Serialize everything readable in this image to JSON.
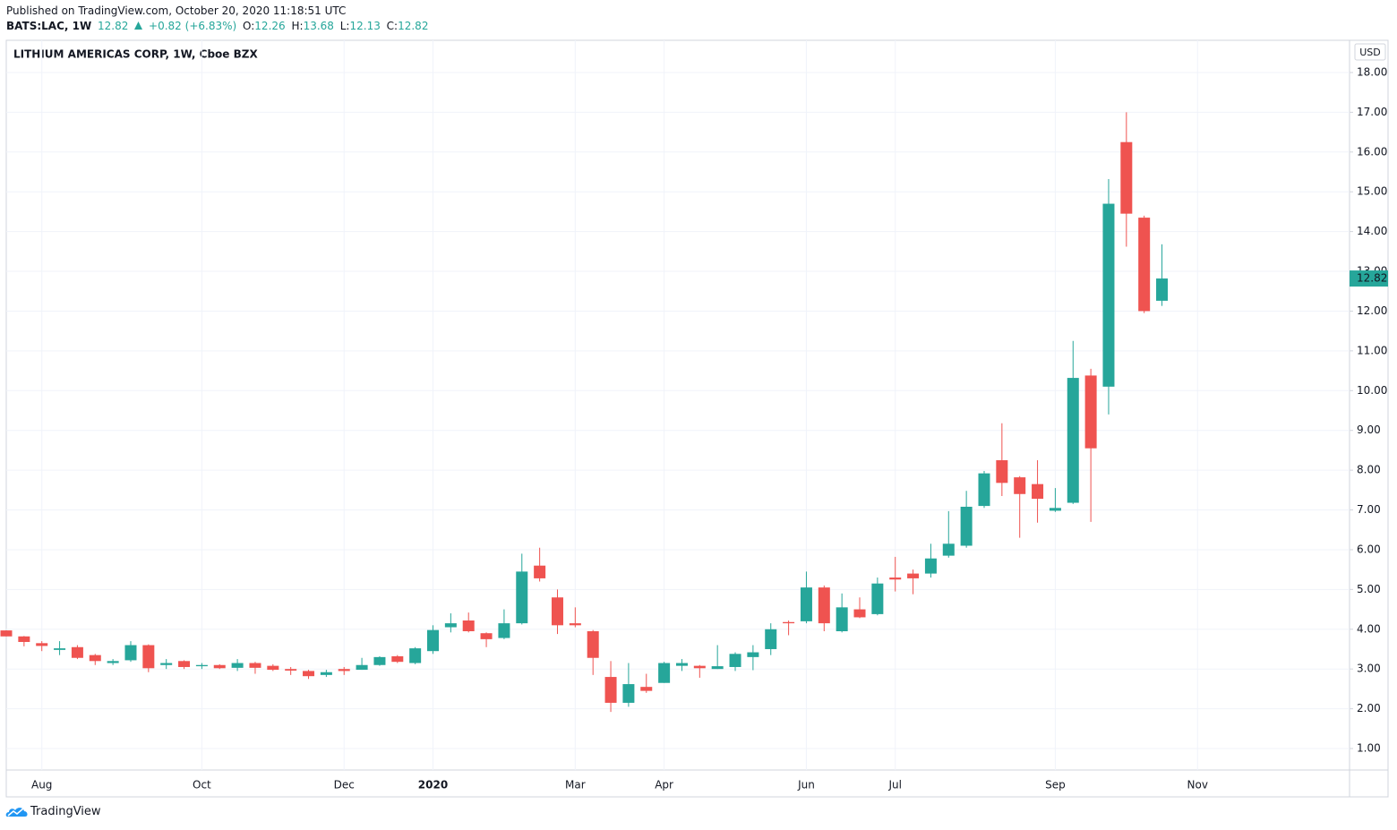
{
  "header": {
    "published": "Published on TradingView.com, October 20, 2020 11:18:51 UTC",
    "symbol": "BATS:LAC, 1W",
    "change": "+0.82 (+6.83%)",
    "o": "O:",
    "h": "H:",
    "l": "L:",
    "c": "C:"
  },
  "footer": {
    "brand": "TradingView"
  },
  "chart_data": {
    "type": "candlestick",
    "title": "LITHIUM AMERICAS CORP, 1W, Cboe BZX",
    "currency": "USD",
    "categories": [
      null,
      null,
      "Aug",
      null,
      null,
      null,
      null,
      null,
      null,
      null,
      null,
      "Oct",
      null,
      null,
      null,
      null,
      null,
      null,
      null,
      "Dec",
      null,
      null,
      null,
      null,
      "2020",
      null,
      null,
      null,
      null,
      null,
      null,
      null,
      "Mar",
      null,
      null,
      null,
      null,
      "Apr",
      null,
      null,
      null,
      null,
      null,
      null,
      null,
      "Jun",
      null,
      null,
      null,
      null,
      "Jul",
      null,
      null,
      null,
      null,
      null,
      null,
      null,
      null,
      "Sep",
      null,
      null,
      null,
      null,
      null,
      null,
      null,
      "Nov",
      null,
      null,
      null,
      null,
      null,
      null,
      null,
      null
    ],
    "open": [
      3.97,
      3.82,
      3.65,
      3.48,
      3.55,
      3.35,
      3.15,
      3.22,
      3.6,
      3.1,
      3.2,
      3.07,
      3.1,
      3.03,
      3.15,
      3.08,
      3.0,
      2.95,
      2.85,
      3.0,
      2.98,
      3.1,
      3.32,
      3.15,
      3.45,
      4.05,
      4.22,
      3.9,
      3.78,
      4.15,
      5.6,
      4.8,
      4.15,
      3.95,
      2.8,
      2.15,
      2.55,
      2.65,
      3.08,
      3.08,
      3.0,
      3.05,
      3.3,
      3.5,
      4.18,
      4.2,
      5.05,
      3.95,
      4.5,
      4.38,
      5.3,
      5.4,
      5.4,
      5.85,
      6.1,
      7.1,
      8.25,
      7.82,
      7.65,
      6.98,
      7.18,
      10.38,
      10.1,
      16.25,
      14.35,
      12.26,
      null,
      null,
      null,
      null,
      null,
      null,
      null,
      null,
      null,
      null
    ],
    "high": [
      3.97,
      3.83,
      3.7,
      3.7,
      3.6,
      3.38,
      3.25,
      3.7,
      3.62,
      3.25,
      3.22,
      3.15,
      3.12,
      3.25,
      3.18,
      3.12,
      3.05,
      2.98,
      2.98,
      3.05,
      3.28,
      3.32,
      3.35,
      3.55,
      4.1,
      4.4,
      4.42,
      3.92,
      4.5,
      5.9,
      6.05,
      5.0,
      4.55,
      3.98,
      3.2,
      3.15,
      2.88,
      3.18,
      3.25,
      3.1,
      3.6,
      3.42,
      3.6,
      4.15,
      4.22,
      5.45,
      5.1,
      4.9,
      4.8,
      5.3,
      5.82,
      5.5,
      6.15,
      6.97,
      7.48,
      7.98,
      9.18,
      7.85,
      8.25,
      7.55,
      11.25,
      10.55,
      15.32,
      17.0,
      14.4,
      13.68,
      null,
      null,
      null,
      null,
      null,
      null,
      null,
      null,
      null,
      null
    ],
    "low": [
      3.82,
      3.57,
      3.45,
      3.35,
      3.25,
      3.1,
      3.1,
      3.18,
      2.92,
      3.0,
      3.0,
      3.0,
      3.0,
      2.95,
      2.88,
      2.95,
      2.85,
      2.75,
      2.8,
      2.85,
      2.98,
      3.08,
      3.15,
      3.12,
      3.38,
      3.92,
      3.92,
      3.55,
      3.75,
      4.12,
      5.2,
      3.88,
      4.05,
      2.85,
      1.92,
      2.05,
      2.4,
      2.65,
      2.95,
      2.78,
      3.0,
      2.95,
      2.97,
      3.35,
      3.85,
      4.15,
      3.95,
      3.92,
      4.28,
      4.35,
      4.95,
      4.88,
      5.3,
      5.8,
      6.05,
      7.05,
      7.35,
      6.3,
      6.68,
      6.95,
      7.15,
      6.7,
      9.4,
      13.62,
      11.95,
      12.13,
      null,
      null,
      null,
      null,
      null,
      null,
      null,
      null,
      null,
      null
    ],
    "close": [
      3.82,
      3.68,
      3.58,
      3.52,
      3.28,
      3.2,
      3.2,
      3.6,
      3.02,
      3.15,
      3.05,
      3.1,
      3.02,
      3.15,
      3.03,
      2.98,
      2.96,
      2.82,
      2.92,
      2.95,
      3.1,
      3.3,
      3.18,
      3.52,
      3.98,
      4.15,
      3.95,
      3.75,
      4.15,
      5.45,
      5.28,
      4.1,
      4.1,
      3.28,
      2.15,
      2.62,
      2.45,
      3.15,
      3.15,
      3.02,
      3.07,
      3.38,
      3.42,
      4.0,
      4.15,
      5.05,
      4.15,
      4.55,
      4.3,
      5.15,
      5.25,
      5.28,
      5.78,
      6.15,
      7.08,
      7.92,
      7.68,
      7.4,
      7.28,
      7.05,
      10.32,
      8.55,
      14.7,
      14.45,
      12.0,
      12.82,
      null,
      null,
      null,
      null,
      null,
      null,
      null,
      null,
      null,
      null
    ],
    "up_color": "#26a69a",
    "down_color": "#ef5350",
    "ylim": [
      0.46,
      18.81
    ],
    "yticks": [
      {
        "value": 1,
        "label": "1.00"
      },
      {
        "value": 2,
        "label": "2.00"
      },
      {
        "value": 3,
        "label": "3.00"
      },
      {
        "value": 4,
        "label": "4.00"
      },
      {
        "value": 5,
        "label": "5.00"
      },
      {
        "value": 6,
        "label": "6.00"
      },
      {
        "value": 7,
        "label": "7.00"
      },
      {
        "value": 8,
        "label": "8.00"
      },
      {
        "value": 9,
        "label": "9.00"
      },
      {
        "value": 10,
        "label": "10.00"
      },
      {
        "value": 11,
        "label": "11.00"
      },
      {
        "value": 12,
        "label": "12.00"
      },
      {
        "value": 13,
        "label": "13.00"
      },
      {
        "value": 14,
        "label": "14.00"
      },
      {
        "value": 15,
        "label": "15.00"
      },
      {
        "value": 16,
        "label": "16.00"
      },
      {
        "value": 17,
        "label": "17.00"
      },
      {
        "value": 18,
        "label": "18.00"
      }
    ],
    "grid": true
  }
}
